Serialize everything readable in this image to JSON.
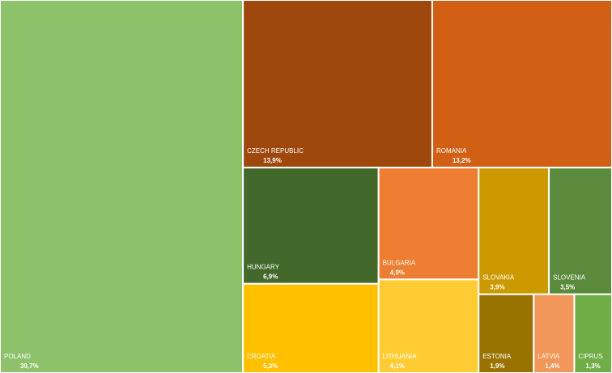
{
  "chart_data": {
    "type": "treemap",
    "categories": [
      "POLAND",
      "CZECH REPUBLIC",
      "ROMANIA",
      "HUNGARY",
      "CROATIA",
      "BULGARIA",
      "LITHUANIA",
      "SLOVAKIA",
      "SLOVENIA",
      "ESTONIA",
      "LATVIA",
      "CIPRUS"
    ],
    "values": [
      39.7,
      13.9,
      13.2,
      6.9,
      5.3,
      4.9,
      4.1,
      3.9,
      3.5,
      1.9,
      1.4,
      1.3
    ],
    "value_labels": [
      "39,7%",
      "13,9%",
      "13,2%",
      "6,9%",
      "5,3%",
      "4,9%",
      "4,1%",
      "3,9%",
      "3,5%",
      "1,9%",
      "1,4%",
      "1,3%"
    ],
    "colors": [
      "#8dc26b",
      "#9e480e",
      "#d26014",
      "#43682b",
      "#ffc000",
      "#ed7d31",
      "#ffcd33",
      "#cc9a00",
      "#5a8a3b",
      "#997300",
      "#f1975a",
      "#70ad47"
    ]
  }
}
